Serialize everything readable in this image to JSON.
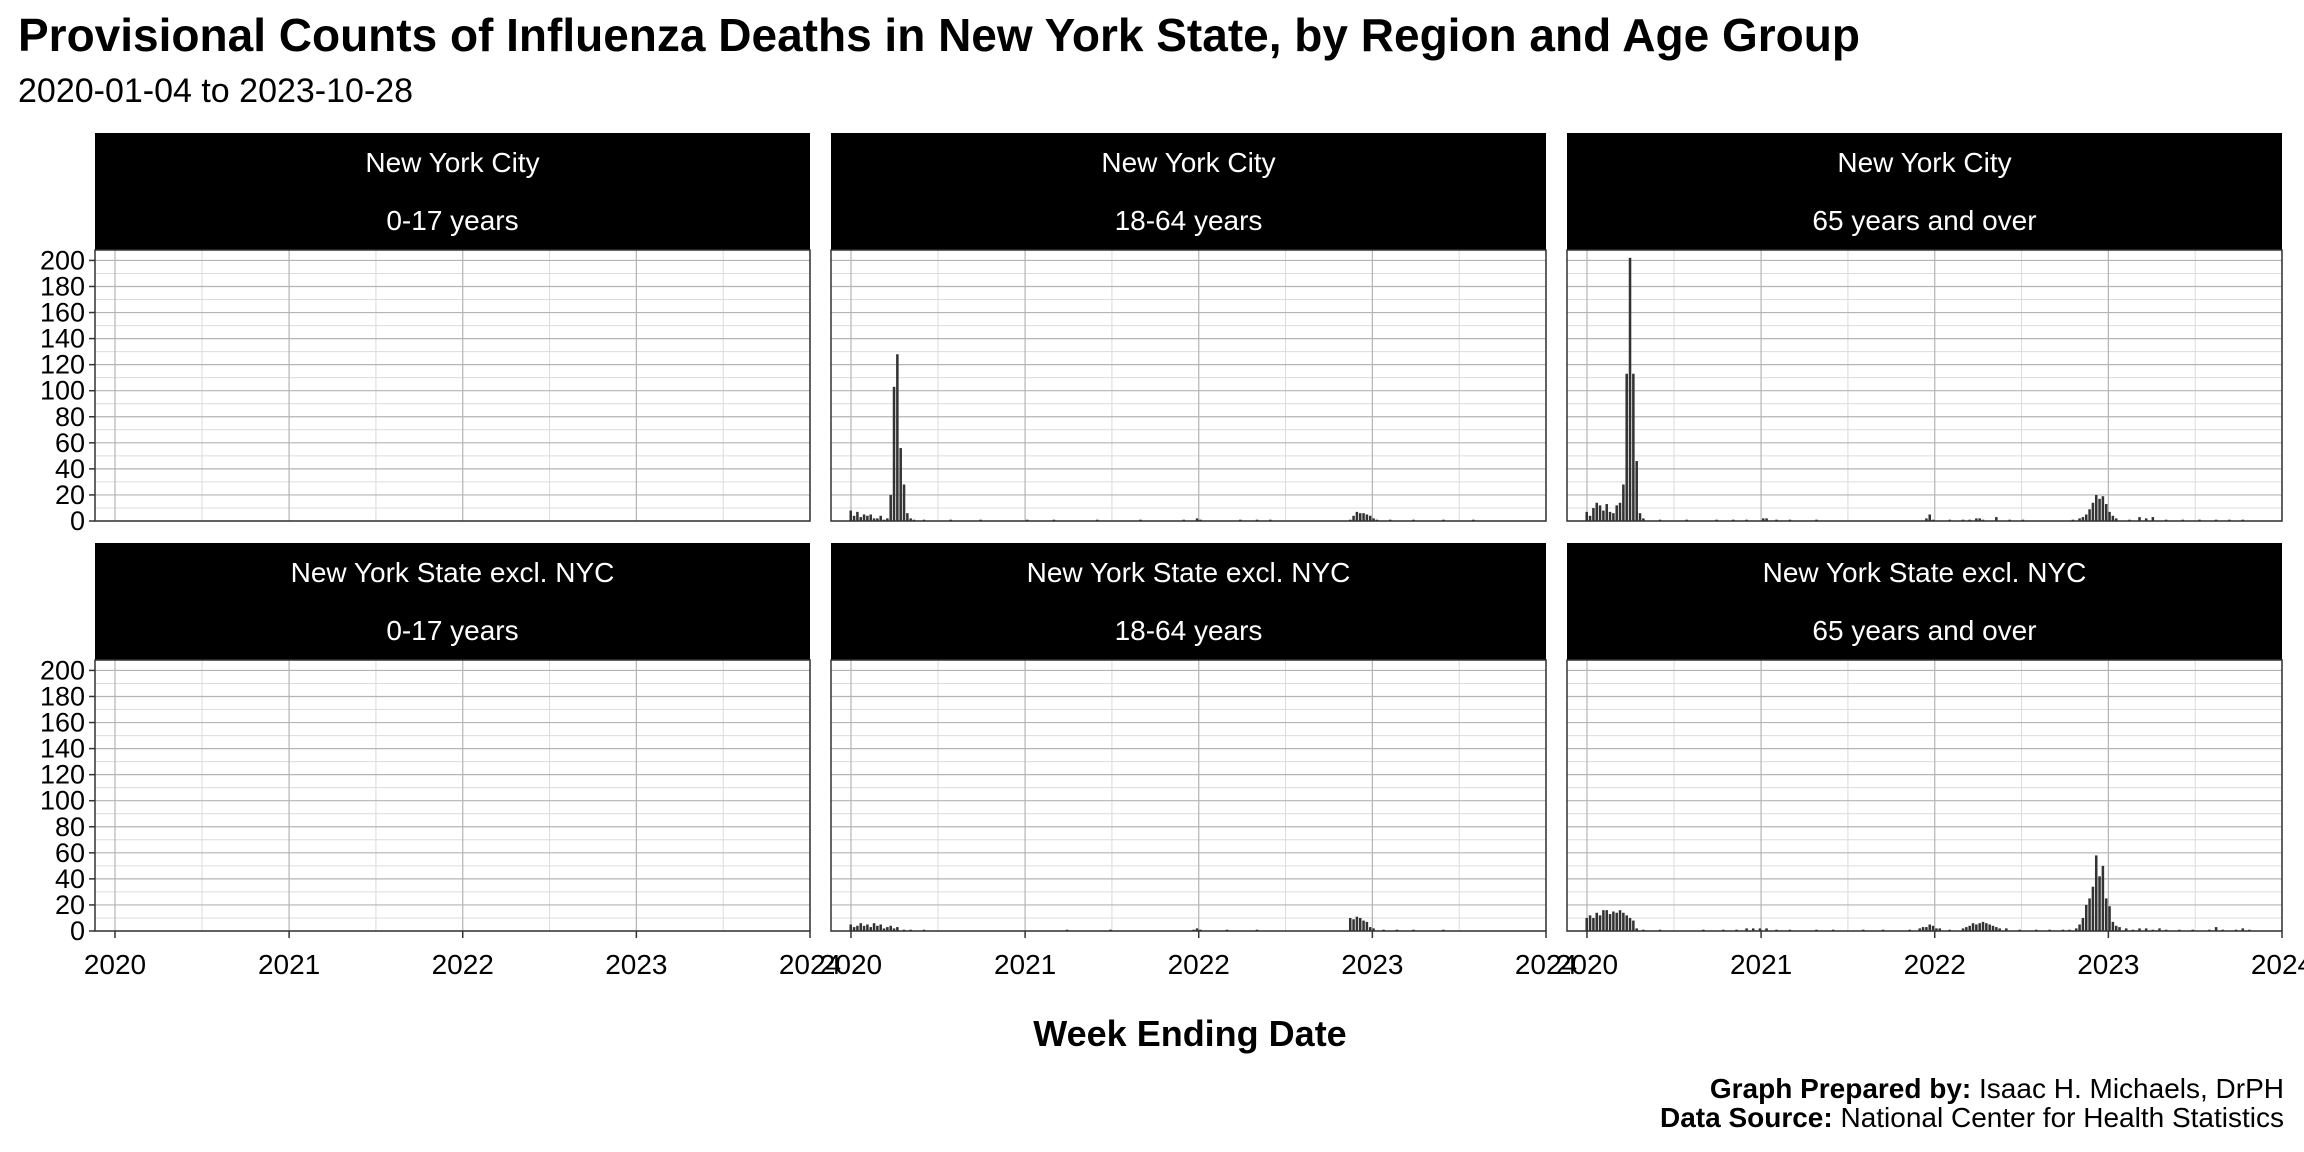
{
  "title": "Provisional Counts of Influenza Deaths in New York State, by Region and Age Group",
  "subtitle": "2020-01-04 to 2023-10-28",
  "xlabel": "Week Ending Date",
  "caption": {
    "prepared_label": "Graph Prepared by:",
    "prepared_value": " Isaac H. Michaels, DrPH",
    "source_label": "Data Source:",
    "source_value": " National Center for Health Statistics"
  },
  "colors": {
    "bar": "#333333",
    "strip": "#000000",
    "strip_text": "#ffffff",
    "grid_major": "#b4b4b4",
    "grid_minor": "#dcdcdc"
  },
  "chart_data": {
    "type": "bar",
    "facets": [
      "region",
      "age_group"
    ],
    "x_type": "date",
    "xlim": [
      "2019-11-20",
      "2024-01-01"
    ],
    "ylim": [
      0,
      208
    ],
    "x_ticks": [
      "2020",
      "2021",
      "2022",
      "2023",
      "2024"
    ],
    "y_ticks": [
      0,
      20,
      40,
      60,
      80,
      100,
      120,
      140,
      160,
      180,
      200
    ],
    "grid": true,
    "panels": [
      {
        "region": "New York City",
        "age_group": "0-17 years",
        "points": []
      },
      {
        "region": "New York City",
        "age_group": "18-64 years",
        "points": [
          [
            "2020-01-04",
            8
          ],
          [
            "2020-01-11",
            4
          ],
          [
            "2020-01-18",
            7
          ],
          [
            "2020-01-25",
            3
          ],
          [
            "2020-02-01",
            5
          ],
          [
            "2020-02-08",
            4
          ],
          [
            "2020-02-15",
            5
          ],
          [
            "2020-02-22",
            2
          ],
          [
            "2020-02-29",
            2
          ],
          [
            "2020-03-07",
            4
          ],
          [
            "2020-03-14",
            1
          ],
          [
            "2020-03-21",
            2
          ],
          [
            "2020-03-28",
            20
          ],
          [
            "2020-04-04",
            103
          ],
          [
            "2020-04-11",
            128
          ],
          [
            "2020-04-18",
            56
          ],
          [
            "2020-04-25",
            28
          ],
          [
            "2020-05-02",
            6
          ],
          [
            "2020-05-09",
            2
          ],
          [
            "2020-05-16",
            1
          ],
          [
            "2020-06-06",
            1
          ],
          [
            "2020-08-01",
            1
          ],
          [
            "2020-10-03",
            1
          ],
          [
            "2021-01-09",
            1
          ],
          [
            "2021-03-06",
            1
          ],
          [
            "2021-06-05",
            1
          ],
          [
            "2021-09-04",
            1
          ],
          [
            "2021-12-04",
            1
          ],
          [
            "2022-01-01",
            2
          ],
          [
            "2022-01-08",
            1
          ],
          [
            "2022-04-02",
            1
          ],
          [
            "2022-05-07",
            1
          ],
          [
            "2022-06-04",
            1
          ],
          [
            "2022-11-19",
            1
          ],
          [
            "2022-11-26",
            4
          ],
          [
            "2022-12-03",
            7
          ],
          [
            "2022-12-10",
            6
          ],
          [
            "2022-12-17",
            6
          ],
          [
            "2022-12-24",
            5
          ],
          [
            "2022-12-31",
            4
          ],
          [
            "2023-01-07",
            2
          ],
          [
            "2023-01-14",
            1
          ],
          [
            "2023-02-11",
            1
          ],
          [
            "2023-04-01",
            1
          ],
          [
            "2023-06-03",
            1
          ],
          [
            "2023-08-05",
            1
          ]
        ]
      },
      {
        "region": "New York City",
        "age_group": "65 years and over",
        "points": [
          [
            "2020-01-04",
            7
          ],
          [
            "2020-01-11",
            4
          ],
          [
            "2020-01-18",
            10
          ],
          [
            "2020-01-25",
            14
          ],
          [
            "2020-02-01",
            12
          ],
          [
            "2020-02-08",
            8
          ],
          [
            "2020-02-15",
            13
          ],
          [
            "2020-02-22",
            7
          ],
          [
            "2020-02-29",
            6
          ],
          [
            "2020-03-07",
            12
          ],
          [
            "2020-03-14",
            14
          ],
          [
            "2020-03-21",
            28
          ],
          [
            "2020-03-28",
            113
          ],
          [
            "2020-04-04",
            202
          ],
          [
            "2020-04-11",
            113
          ],
          [
            "2020-04-18",
            46
          ],
          [
            "2020-04-25",
            6
          ],
          [
            "2020-05-02",
            2
          ],
          [
            "2020-06-06",
            1
          ],
          [
            "2020-08-01",
            1
          ],
          [
            "2020-10-03",
            1
          ],
          [
            "2020-11-07",
            1
          ],
          [
            "2020-12-05",
            1
          ],
          [
            "2021-01-09",
            2
          ],
          [
            "2021-01-16",
            2
          ],
          [
            "2021-02-06",
            1
          ],
          [
            "2021-03-06",
            1
          ],
          [
            "2021-05-01",
            1
          ],
          [
            "2021-12-18",
            2
          ],
          [
            "2021-12-25",
            5
          ],
          [
            "2022-01-01",
            1
          ],
          [
            "2022-02-05",
            1
          ],
          [
            "2022-03-05",
            1
          ],
          [
            "2022-03-19",
            1
          ],
          [
            "2022-04-02",
            2
          ],
          [
            "2022-04-09",
            2
          ],
          [
            "2022-04-16",
            1
          ],
          [
            "2022-05-14",
            3
          ],
          [
            "2022-06-11",
            1
          ],
          [
            "2022-07-09",
            1
          ],
          [
            "2022-10-22",
            1
          ],
          [
            "2022-11-05",
            2
          ],
          [
            "2022-11-12",
            3
          ],
          [
            "2022-11-19",
            5
          ],
          [
            "2022-11-26",
            9
          ],
          [
            "2022-12-03",
            14
          ],
          [
            "2022-12-10",
            20
          ],
          [
            "2022-12-17",
            17
          ],
          [
            "2022-12-24",
            19
          ],
          [
            "2022-12-31",
            13
          ],
          [
            "2023-01-07",
            7
          ],
          [
            "2023-01-14",
            4
          ],
          [
            "2023-01-21",
            2
          ],
          [
            "2023-02-18",
            1
          ],
          [
            "2023-03-11",
            3
          ],
          [
            "2023-03-25",
            2
          ],
          [
            "2023-04-08",
            3
          ],
          [
            "2023-05-06",
            1
          ],
          [
            "2023-06-10",
            1
          ],
          [
            "2023-07-15",
            1
          ],
          [
            "2023-08-19",
            1
          ],
          [
            "2023-09-16",
            1
          ],
          [
            "2023-10-14",
            1
          ]
        ]
      },
      {
        "region": "New York State excl. NYC",
        "age_group": "0-17 years",
        "points": []
      },
      {
        "region": "New York State excl. NYC",
        "age_group": "18-64 years",
        "points": [
          [
            "2020-01-04",
            5
          ],
          [
            "2020-01-11",
            3
          ],
          [
            "2020-01-18",
            4
          ],
          [
            "2020-01-25",
            6
          ],
          [
            "2020-02-01",
            4
          ],
          [
            "2020-02-08",
            5
          ],
          [
            "2020-02-15",
            3
          ],
          [
            "2020-02-22",
            6
          ],
          [
            "2020-02-29",
            4
          ],
          [
            "2020-03-07",
            5
          ],
          [
            "2020-03-14",
            2
          ],
          [
            "2020-03-21",
            3
          ],
          [
            "2020-03-28",
            4
          ],
          [
            "2020-04-04",
            2
          ],
          [
            "2020-04-11",
            3
          ],
          [
            "2020-04-25",
            1
          ],
          [
            "2020-05-09",
            1
          ],
          [
            "2020-06-06",
            1
          ],
          [
            "2021-04-03",
            1
          ],
          [
            "2021-07-03",
            1
          ],
          [
            "2021-12-25",
            1
          ],
          [
            "2022-01-01",
            2
          ],
          [
            "2022-01-08",
            1
          ],
          [
            "2022-03-05",
            1
          ],
          [
            "2022-05-07",
            1
          ],
          [
            "2022-11-19",
            10
          ],
          [
            "2022-11-26",
            9
          ],
          [
            "2022-12-03",
            11
          ],
          [
            "2022-12-10",
            10
          ],
          [
            "2022-12-17",
            8
          ],
          [
            "2022-12-24",
            7
          ],
          [
            "2022-12-31",
            3
          ],
          [
            "2023-01-07",
            2
          ],
          [
            "2023-01-28",
            1
          ],
          [
            "2023-02-25",
            1
          ],
          [
            "2023-04-01",
            1
          ],
          [
            "2023-06-03",
            1
          ]
        ]
      },
      {
        "region": "New York State excl. NYC",
        "age_group": "65 years and over",
        "points": [
          [
            "2020-01-04",
            10
          ],
          [
            "2020-01-11",
            12
          ],
          [
            "2020-01-18",
            10
          ],
          [
            "2020-01-25",
            14
          ],
          [
            "2020-02-01",
            12
          ],
          [
            "2020-02-08",
            16
          ],
          [
            "2020-02-15",
            16
          ],
          [
            "2020-02-22",
            13
          ],
          [
            "2020-02-29",
            15
          ],
          [
            "2020-03-07",
            14
          ],
          [
            "2020-03-14",
            16
          ],
          [
            "2020-03-21",
            14
          ],
          [
            "2020-03-28",
            12
          ],
          [
            "2020-04-04",
            10
          ],
          [
            "2020-04-11",
            8
          ],
          [
            "2020-04-18",
            2
          ],
          [
            "2020-05-02",
            1
          ],
          [
            "2020-06-06",
            1
          ],
          [
            "2020-09-05",
            1
          ],
          [
            "2020-10-17",
            1
          ],
          [
            "2020-11-14",
            1
          ],
          [
            "2020-12-05",
            2
          ],
          [
            "2020-12-19",
            2
          ],
          [
            "2021-01-02",
            2
          ],
          [
            "2021-01-16",
            2
          ],
          [
            "2021-02-06",
            1
          ],
          [
            "2021-03-06",
            1
          ],
          [
            "2021-05-01",
            1
          ],
          [
            "2021-06-05",
            1
          ],
          [
            "2021-08-07",
            1
          ],
          [
            "2021-09-18",
            1
          ],
          [
            "2021-11-13",
            1
          ],
          [
            "2021-12-04",
            2
          ],
          [
            "2021-12-11",
            3
          ],
          [
            "2021-12-18",
            3
          ],
          [
            "2021-12-25",
            5
          ],
          [
            "2022-01-01",
            4
          ],
          [
            "2022-01-08",
            2
          ],
          [
            "2022-01-15",
            2
          ],
          [
            "2022-02-05",
            1
          ],
          [
            "2022-03-05",
            2
          ],
          [
            "2022-03-12",
            3
          ],
          [
            "2022-03-19",
            4
          ],
          [
            "2022-03-26",
            6
          ],
          [
            "2022-04-02",
            5
          ],
          [
            "2022-04-09",
            6
          ],
          [
            "2022-04-16",
            7
          ],
          [
            "2022-04-23",
            6
          ],
          [
            "2022-04-30",
            5
          ],
          [
            "2022-05-07",
            4
          ],
          [
            "2022-05-14",
            3
          ],
          [
            "2022-05-21",
            2
          ],
          [
            "2022-06-04",
            2
          ],
          [
            "2022-07-02",
            1
          ],
          [
            "2022-08-06",
            1
          ],
          [
            "2022-09-03",
            1
          ],
          [
            "2022-10-01",
            1
          ],
          [
            "2022-10-15",
            1
          ],
          [
            "2022-10-29",
            2
          ],
          [
            "2022-11-05",
            5
          ],
          [
            "2022-11-12",
            10
          ],
          [
            "2022-11-19",
            20
          ],
          [
            "2022-11-26",
            25
          ],
          [
            "2022-12-03",
            34
          ],
          [
            "2022-12-10",
            58
          ],
          [
            "2022-12-17",
            42
          ],
          [
            "2022-12-24",
            50
          ],
          [
            "2022-12-31",
            25
          ],
          [
            "2023-01-07",
            19
          ],
          [
            "2023-01-14",
            7
          ],
          [
            "2023-01-21",
            4
          ],
          [
            "2023-01-28",
            3
          ],
          [
            "2023-02-11",
            2
          ],
          [
            "2023-02-25",
            1
          ],
          [
            "2023-03-11",
            2
          ],
          [
            "2023-03-25",
            2
          ],
          [
            "2023-04-08",
            1
          ],
          [
            "2023-04-22",
            2
          ],
          [
            "2023-05-06",
            1
          ],
          [
            "2023-06-03",
            1
          ],
          [
            "2023-07-01",
            1
          ],
          [
            "2023-08-05",
            1
          ],
          [
            "2023-08-19",
            3
          ],
          [
            "2023-09-02",
            1
          ],
          [
            "2023-09-30",
            1
          ],
          [
            "2023-10-14",
            2
          ],
          [
            "2023-10-28",
            1
          ]
        ]
      }
    ]
  }
}
